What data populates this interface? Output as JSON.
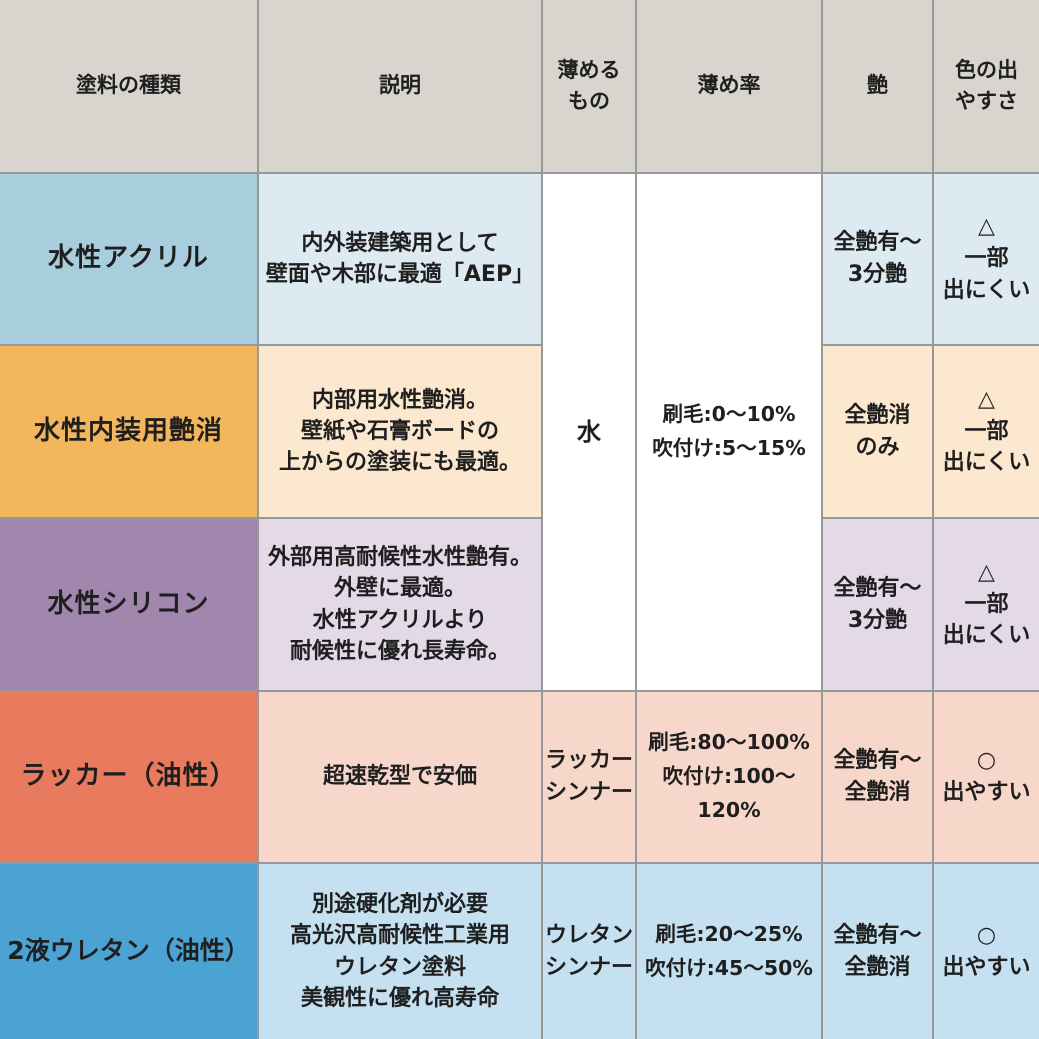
{
  "colors": {
    "grid_line": "#97989a",
    "header_bg": "#d8d5ce",
    "white_cell_bg": "#ffffff",
    "text": "#1f1f1f",
    "row1_name_bg": "#a8cedd",
    "row1_cell_bg": "#ddeaf2",
    "row2_name_bg": "#f4b65c",
    "row2_cell_bg": "#fbe8ce",
    "row3_name_bg": "#a187ae",
    "row3_cell_bg": "#e3d9e7",
    "row4_name_bg": "#e87a5d",
    "row4_cell_bg": "#f8d7cb",
    "row5_name_bg": "#4ba3d4",
    "row5_cell_bg": "#c5e1f1"
  },
  "header": {
    "paint_type": "塗料の種類",
    "description": "説明",
    "thinner": "薄める\nもの",
    "dilution_rate": "薄め率",
    "gloss": "艶",
    "color_ease": "色の出\nやすさ"
  },
  "merged": {
    "thinner_water": "水",
    "dilution_water": "刷毛:0～10%\n吹付け:5～15%"
  },
  "rows": [
    {
      "name": "水性アクリル",
      "description": "内外装建築用として\n壁面や木部に最適「AEP」",
      "gloss": "全艶有～\n3分艶",
      "color_ease": "△\n一部\n出にくい",
      "name_bg": "#a8cedd",
      "cell_bg": "#ddeaf2"
    },
    {
      "name": "水性内装用艶消",
      "description": "内部用水性艶消。\n壁紙や石膏ボードの\n上からの塗装にも最適。",
      "gloss": "全艶消\nのみ",
      "color_ease": "△\n一部\n出にくい",
      "name_bg": "#f4b65c",
      "cell_bg": "#fbe8ce"
    },
    {
      "name": "水性シリコン",
      "description": "外部用高耐候性水性艶有。\n外壁に最適。\n水性アクリルより\n耐候性に優れ長寿命。",
      "gloss": "全艶有～\n3分艶",
      "color_ease": "△\n一部\n出にくい",
      "name_bg": "#a187ae",
      "cell_bg": "#e3d9e7"
    },
    {
      "name": "ラッカー（油性）",
      "description": "超速乾型で安価",
      "thinner": "ラッカー\nシンナー",
      "dilution": "刷毛:80～100%\n吹付け:100～120%",
      "gloss": "全艶有～\n全艶消",
      "color_ease": "○\n出やすい",
      "name_bg": "#e87a5d",
      "cell_bg": "#f8d7cb"
    },
    {
      "name": "2液ウレタン（油性）",
      "description": "別途硬化剤が必要\n高光沢高耐候性工業用\nウレタン塗料\n美観性に優れ高寿命",
      "thinner": "ウレタン\nシンナー",
      "dilution": "刷毛:20～25%\n吹付け:45～50%",
      "gloss": "全艶有～\n全艶消",
      "color_ease": "○\n出やすい",
      "name_bg": "#4ba3d4",
      "cell_bg": "#c5e1f1"
    }
  ],
  "chart_data": {
    "type": "table",
    "title": "塗料の種類比較表",
    "columns": [
      "塗料の種類",
      "説明",
      "薄めるもの",
      "薄め率",
      "艶",
      "色の出やすさ"
    ],
    "rows": [
      [
        "水性アクリル",
        "内外装建築用として壁面や木部に最適「AEP」",
        "水",
        "刷毛:0～10% 吹付け:5～15%",
        "全艶有～3分艶",
        "△ 一部出にくい"
      ],
      [
        "水性内装用艶消",
        "内部用水性艶消。壁紙や石膏ボードの上からの塗装にも最適。",
        "水",
        "刷毛:0～10% 吹付け:5～15%",
        "全艶消のみ",
        "△ 一部出にくい"
      ],
      [
        "水性シリコン",
        "外部用高耐候性水性艶有。外壁に最適。水性アクリルより耐候性に優れ長寿命。",
        "水",
        "刷毛:0～10% 吹付け:5～15%",
        "全艶有～3分艶",
        "△ 一部出にくい"
      ],
      [
        "ラッカー（油性）",
        "超速乾型で安価",
        "ラッカーシンナー",
        "刷毛:80～100% 吹付け:100～120%",
        "全艶有～全艶消",
        "○ 出やすい"
      ],
      [
        "2液ウレタン（油性）",
        "別途硬化剤が必要 高光沢高耐候性工業用 ウレタン塗料 美観性に優れ高寿命",
        "ウレタンシンナー",
        "刷毛:20～25% 吹付け:45～50%",
        "全艶有～全艶消",
        "○ 出やすい"
      ]
    ],
    "layout": {
      "merged_cells": "薄めるもの・薄め率の1〜3行目は結合（水 / 刷毛:0～10% 吹付け:5～15%）",
      "grid": "on"
    }
  }
}
